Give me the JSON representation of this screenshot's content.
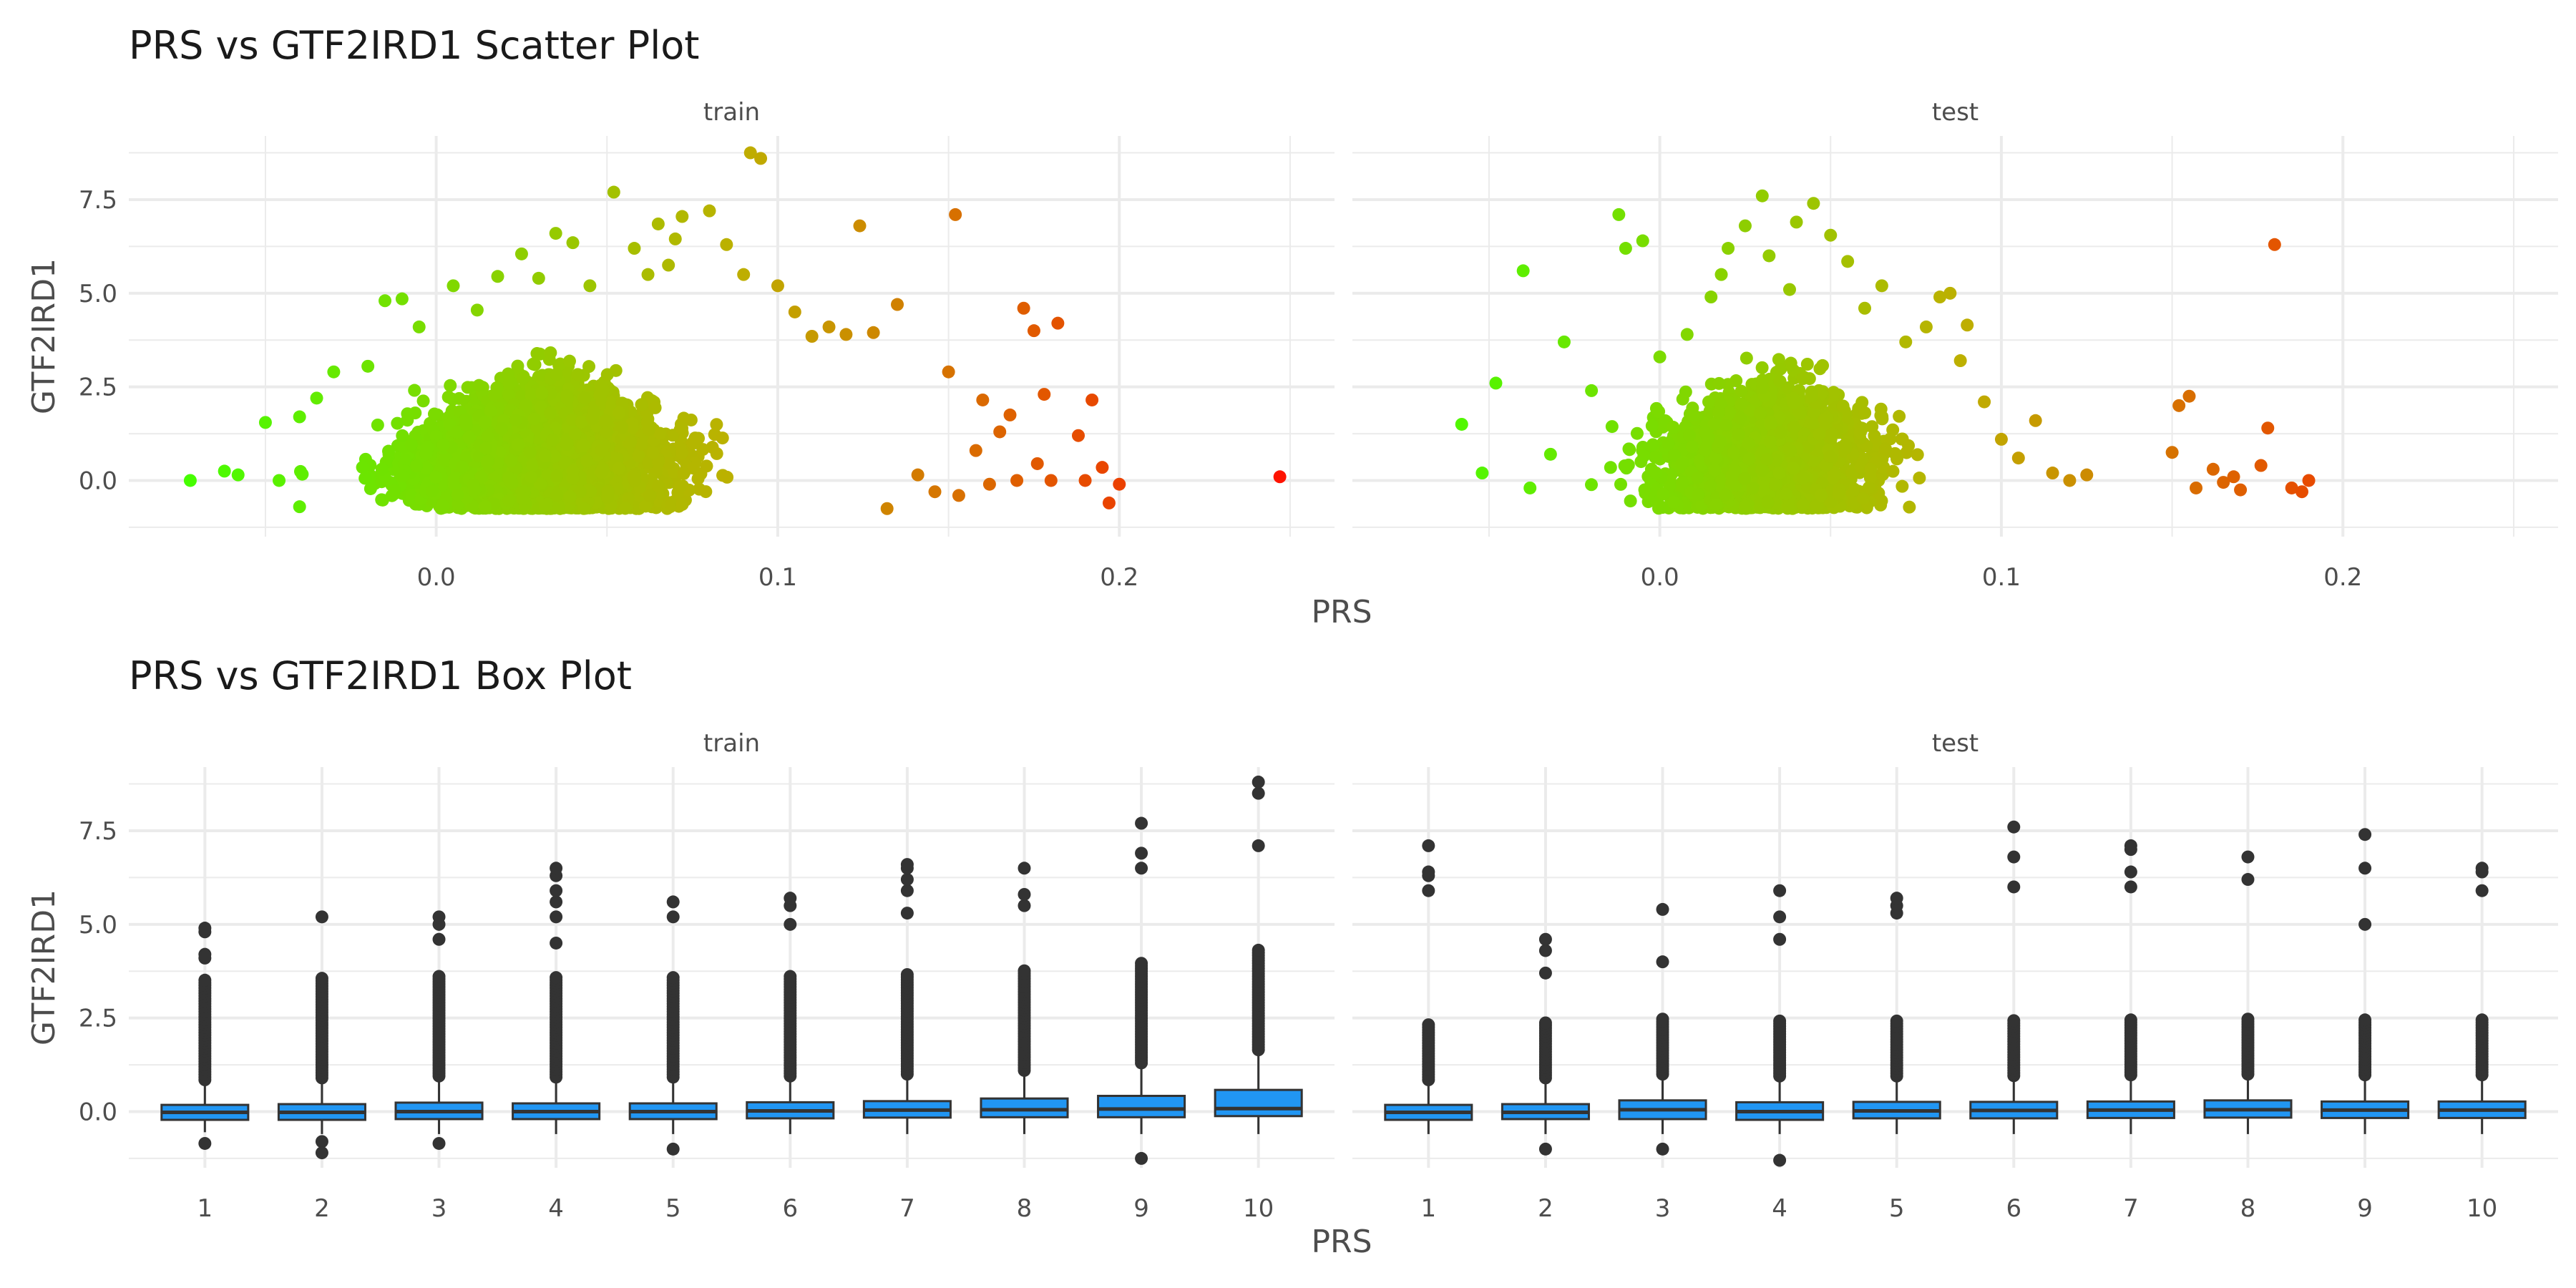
{
  "scatter_title": "PRS vs GTF2IRD1 Scatter Plot",
  "box_title": "PRS vs GTF2IRD1 Box Plot",
  "colors": {
    "low": "#44ff00",
    "mid": "#bdb000",
    "high": "#ff1000",
    "box_fill": "#2196f3",
    "box_stroke": "#333333",
    "grid": "#ebebeb",
    "point": "#333333"
  },
  "chart_data": [
    {
      "type": "scatter",
      "title": "PRS vs GTF2IRD1 Scatter Plot",
      "xlabel": "PRS",
      "ylabel": "GTF2IRD1",
      "xlim": [
        -0.09,
        0.263
      ],
      "ylim": [
        -1.5,
        9.2
      ],
      "xticks": [
        0.0,
        0.1,
        0.2
      ],
      "xtick_labels": [
        "0.0",
        "0.1",
        "0.2"
      ],
      "yticks": [
        0.0,
        2.5,
        5.0,
        7.5
      ],
      "ytick_labels": [
        "0.0",
        "2.5",
        "5.0",
        "7.5"
      ],
      "color_scale": "gradient by PRS (green low → orange/red high)",
      "panels": [
        {
          "name": "train",
          "points": [
            [
              -0.072,
              0.0
            ],
            [
              -0.062,
              0.25
            ],
            [
              -0.058,
              0.15
            ],
            [
              -0.05,
              1.55
            ],
            [
              -0.046,
              0.0
            ],
            [
              -0.04,
              1.7
            ],
            [
              -0.04,
              -0.7
            ],
            [
              -0.035,
              2.2
            ],
            [
              -0.03,
              2.9
            ],
            [
              -0.02,
              3.05
            ],
            [
              -0.015,
              4.8
            ],
            [
              -0.01,
              4.85
            ],
            [
              -0.005,
              4.1
            ],
            [
              0.005,
              5.2
            ],
            [
              0.012,
              4.55
            ],
            [
              0.018,
              5.45
            ],
            [
              0.025,
              6.05
            ],
            [
              0.03,
              5.4
            ],
            [
              0.035,
              6.6
            ],
            [
              0.04,
              6.35
            ],
            [
              0.045,
              5.2
            ],
            [
              0.052,
              7.7
            ],
            [
              0.058,
              6.2
            ],
            [
              0.062,
              5.5
            ],
            [
              0.065,
              6.85
            ],
            [
              0.068,
              5.75
            ],
            [
              0.07,
              6.45
            ],
            [
              0.072,
              7.05
            ],
            [
              0.08,
              7.2
            ],
            [
              0.085,
              6.3
            ],
            [
              0.09,
              5.5
            ],
            [
              0.092,
              8.75
            ],
            [
              0.095,
              8.6
            ],
            [
              0.1,
              5.2
            ],
            [
              0.105,
              4.5
            ],
            [
              0.11,
              3.85
            ],
            [
              0.115,
              4.1
            ],
            [
              0.12,
              3.9
            ],
            [
              0.124,
              6.8
            ],
            [
              0.128,
              3.95
            ],
            [
              0.132,
              -0.75
            ],
            [
              0.135,
              4.7
            ],
            [
              0.141,
              0.15
            ],
            [
              0.146,
              -0.3
            ],
            [
              0.15,
              2.9
            ],
            [
              0.152,
              7.1
            ],
            [
              0.153,
              -0.4
            ],
            [
              0.158,
              0.8
            ],
            [
              0.16,
              2.15
            ],
            [
              0.162,
              -0.1
            ],
            [
              0.165,
              1.3
            ],
            [
              0.168,
              1.75
            ],
            [
              0.17,
              0.0
            ],
            [
              0.172,
              4.6
            ],
            [
              0.175,
              4.0
            ],
            [
              0.176,
              0.45
            ],
            [
              0.178,
              2.3
            ],
            [
              0.18,
              0.0
            ],
            [
              0.182,
              4.2
            ],
            [
              0.188,
              1.2
            ],
            [
              0.19,
              0.0
            ],
            [
              0.192,
              2.15
            ],
            [
              0.195,
              0.35
            ],
            [
              0.197,
              -0.6
            ],
            [
              0.2,
              -0.1
            ],
            [
              0.247,
              0.1
            ]
          ]
        },
        {
          "name": "test",
          "points": [
            [
              -0.058,
              1.5
            ],
            [
              -0.052,
              0.2
            ],
            [
              -0.048,
              2.6
            ],
            [
              -0.04,
              5.6
            ],
            [
              -0.038,
              -0.2
            ],
            [
              -0.032,
              0.7
            ],
            [
              -0.028,
              3.7
            ],
            [
              -0.02,
              2.4
            ],
            [
              -0.012,
              7.1
            ],
            [
              -0.01,
              6.2
            ],
            [
              -0.005,
              6.4
            ],
            [
              0.0,
              3.3
            ],
            [
              0.008,
              3.9
            ],
            [
              0.015,
              4.9
            ],
            [
              0.018,
              5.5
            ],
            [
              0.02,
              6.2
            ],
            [
              0.025,
              6.8
            ],
            [
              0.03,
              7.6
            ],
            [
              0.032,
              6.0
            ],
            [
              0.038,
              5.1
            ],
            [
              0.04,
              6.9
            ],
            [
              0.045,
              7.4
            ],
            [
              0.05,
              6.55
            ],
            [
              0.055,
              5.85
            ],
            [
              0.06,
              4.6
            ],
            [
              0.065,
              5.2
            ],
            [
              0.072,
              3.7
            ],
            [
              0.078,
              4.1
            ],
            [
              0.082,
              4.9
            ],
            [
              0.085,
              5.0
            ],
            [
              0.088,
              3.2
            ],
            [
              0.09,
              4.15
            ],
            [
              0.095,
              2.1
            ],
            [
              0.1,
              1.1
            ],
            [
              0.105,
              0.6
            ],
            [
              0.11,
              1.6
            ],
            [
              0.115,
              0.2
            ],
            [
              0.12,
              0.0
            ],
            [
              0.125,
              0.15
            ],
            [
              0.15,
              0.75
            ],
            [
              0.152,
              2.0
            ],
            [
              0.155,
              2.25
            ],
            [
              0.157,
              -0.2
            ],
            [
              0.162,
              0.3
            ],
            [
              0.165,
              -0.05
            ],
            [
              0.168,
              0.1
            ],
            [
              0.17,
              -0.25
            ],
            [
              0.176,
              0.4
            ],
            [
              0.178,
              1.4
            ],
            [
              0.18,
              6.3
            ],
            [
              0.185,
              -0.2
            ],
            [
              0.188,
              -0.3
            ],
            [
              0.19,
              0.0
            ]
          ]
        }
      ]
    },
    {
      "type": "box",
      "title": "PRS vs GTF2IRD1 Box Plot",
      "xlabel": "PRS",
      "ylabel": "GTF2IRD1",
      "categories": [
        "1",
        "2",
        "3",
        "4",
        "5",
        "6",
        "7",
        "8",
        "9",
        "10"
      ],
      "ylim": [
        -1.5,
        9.2
      ],
      "yticks": [
        0.0,
        2.5,
        5.0,
        7.5
      ],
      "ytick_labels": [
        "0.0",
        "2.5",
        "5.0",
        "7.5"
      ],
      "panels": [
        {
          "name": "train",
          "boxes": [
            {
              "q1": -0.22,
              "median": -0.02,
              "q3": 0.18,
              "lower": -0.55,
              "upper": 0.75,
              "outliers_max": 4.9,
              "outliers": [
                -0.85,
                4.1,
                4.2,
                4.8,
                4.9
              ]
            },
            {
              "q1": -0.22,
              "median": -0.02,
              "q3": 0.2,
              "lower": -0.6,
              "upper": 0.8,
              "outliers_max": 5.2,
              "outliers": [
                -0.8,
                -1.1,
                5.2
              ]
            },
            {
              "q1": -0.2,
              "median": 0.0,
              "q3": 0.24,
              "lower": -0.6,
              "upper": 0.85,
              "outliers_max": 5.2,
              "outliers": [
                -0.85,
                4.6,
                5.0,
                5.2
              ]
            },
            {
              "q1": -0.2,
              "median": 0.0,
              "q3": 0.22,
              "lower": -0.6,
              "upper": 0.82,
              "outliers_max": 6.5,
              "outliers": [
                4.5,
                5.2,
                5.6,
                5.9,
                6.3,
                6.5
              ]
            },
            {
              "q1": -0.2,
              "median": 0.0,
              "q3": 0.22,
              "lower": -0.6,
              "upper": 0.82,
              "outliers_max": 5.6,
              "outliers": [
                -1.0,
                5.2,
                5.6
              ]
            },
            {
              "q1": -0.18,
              "median": 0.02,
              "q3": 0.25,
              "lower": -0.6,
              "upper": 0.85,
              "outliers_max": 5.7,
              "outliers": [
                5.0,
                5.5,
                5.7
              ]
            },
            {
              "q1": -0.16,
              "median": 0.04,
              "q3": 0.28,
              "lower": -0.6,
              "upper": 0.9,
              "outliers_max": 6.6,
              "outliers": [
                5.3,
                5.9,
                6.2,
                6.5,
                6.6
              ]
            },
            {
              "q1": -0.15,
              "median": 0.05,
              "q3": 0.35,
              "lower": -0.6,
              "upper": 1.0,
              "outliers_max": 6.5,
              "outliers": [
                5.5,
                5.8,
                6.5
              ]
            },
            {
              "q1": -0.15,
              "median": 0.07,
              "q3": 0.42,
              "lower": -0.6,
              "upper": 1.2,
              "outliers_max": 7.7,
              "outliers": [
                -1.25,
                6.5,
                6.9,
                7.7
              ]
            },
            {
              "q1": -0.12,
              "median": 0.08,
              "q3": 0.58,
              "lower": -0.6,
              "upper": 1.55,
              "outliers_max": 8.8,
              "outliers": [
                7.1,
                8.5,
                8.8
              ]
            }
          ]
        },
        {
          "name": "test",
          "boxes": [
            {
              "q1": -0.22,
              "median": -0.02,
              "q3": 0.18,
              "lower": -0.6,
              "upper": 0.75,
              "outliers_max": 7.1,
              "outliers": [
                5.9,
                6.3,
                6.4,
                7.1
              ]
            },
            {
              "q1": -0.2,
              "median": -0.02,
              "q3": 0.2,
              "lower": -0.6,
              "upper": 0.8,
              "outliers_max": 4.6,
              "outliers": [
                -1.0,
                3.7,
                4.3,
                4.6
              ]
            },
            {
              "q1": -0.2,
              "median": 0.05,
              "q3": 0.3,
              "lower": -0.6,
              "upper": 0.9,
              "outliers_max": 5.4,
              "outliers": [
                -1.0,
                4.0,
                5.4
              ]
            },
            {
              "q1": -0.22,
              "median": 0.0,
              "q3": 0.25,
              "lower": -0.6,
              "upper": 0.85,
              "outliers_max": 5.9,
              "outliers": [
                -1.3,
                4.6,
                5.2,
                5.9
              ]
            },
            {
              "q1": -0.18,
              "median": 0.02,
              "q3": 0.26,
              "lower": -0.6,
              "upper": 0.85,
              "outliers_max": 5.7,
              "outliers": [
                5.3,
                5.5,
                5.7
              ]
            },
            {
              "q1": -0.18,
              "median": 0.03,
              "q3": 0.26,
              "lower": -0.6,
              "upper": 0.86,
              "outliers_max": 7.6,
              "outliers": [
                6.0,
                6.8,
                7.6
              ]
            },
            {
              "q1": -0.17,
              "median": 0.04,
              "q3": 0.27,
              "lower": -0.6,
              "upper": 0.88,
              "outliers_max": 7.1,
              "outliers": [
                6.0,
                6.4,
                7.0,
                7.1
              ]
            },
            {
              "q1": -0.16,
              "median": 0.05,
              "q3": 0.3,
              "lower": -0.6,
              "upper": 0.9,
              "outliers_max": 6.8,
              "outliers": [
                6.2,
                6.8
              ]
            },
            {
              "q1": -0.17,
              "median": 0.04,
              "q3": 0.27,
              "lower": -0.6,
              "upper": 0.88,
              "outliers_max": 7.4,
              "outliers": [
                5.0,
                6.5,
                7.4
              ]
            },
            {
              "q1": -0.17,
              "median": 0.04,
              "q3": 0.27,
              "lower": -0.6,
              "upper": 0.88,
              "outliers_max": 6.5,
              "outliers": [
                5.9,
                6.4,
                6.5
              ]
            }
          ]
        }
      ]
    }
  ]
}
